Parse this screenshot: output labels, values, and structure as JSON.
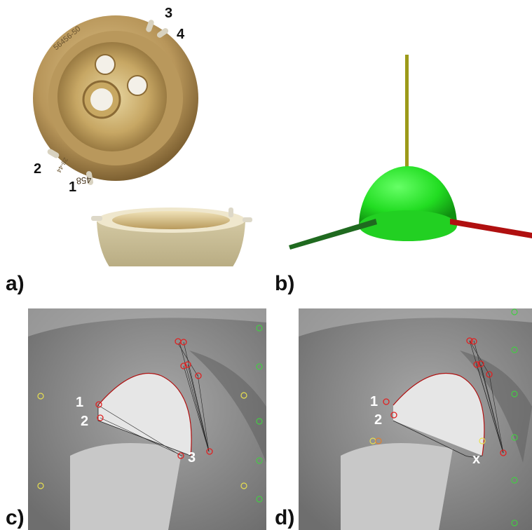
{
  "panels": {
    "a": {
      "label": "a)",
      "pin_labels": [
        "1",
        "2",
        "3",
        "4"
      ],
      "engravings": [
        "56456-50",
        "458",
        "28-44"
      ]
    },
    "b": {
      "label": "b)"
    },
    "c": {
      "label": "c)",
      "markers": [
        "1",
        "2",
        "3"
      ]
    },
    "d": {
      "label": "d)",
      "markers": [
        "1",
        "2",
        "x"
      ]
    }
  },
  "colors": {
    "cup_gold": "#c9a86a",
    "porous_coating": "#c9bd95",
    "sphere_green": "#22dd22",
    "axis_yellow": "#9c9a1a",
    "axis_red": "#b01010",
    "axis_green": "#1f6a1f",
    "xray_bg": "#8e8e8e",
    "marker_red": "#e02020",
    "marker_yellow": "#e8e050",
    "marker_green": "#44cc44"
  }
}
